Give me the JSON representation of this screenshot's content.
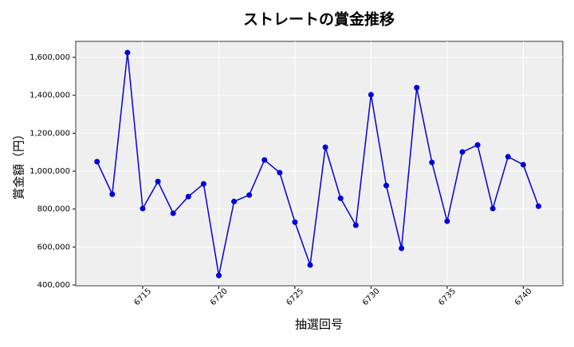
{
  "chart_data": {
    "type": "line",
    "title": "ストレートの賞金推移",
    "x_label": "抽選回号",
    "y_label": "賞金額（円）",
    "x": [
      6712,
      6713,
      6714,
      6715,
      6716,
      6717,
      6718,
      6719,
      6720,
      6721,
      6722,
      6723,
      6724,
      6725,
      6726,
      6727,
      6728,
      6729,
      6730,
      6731,
      6732,
      6733,
      6734,
      6735,
      6736,
      6737,
      6738,
      6739,
      6740,
      6741
    ],
    "series": [
      {
        "name": "賞金",
        "color": "#0000dd",
        "values": [
          1050000,
          878000,
          1625000,
          803000,
          945000,
          778000,
          866000,
          933000,
          450000,
          840000,
          874000,
          1059000,
          992000,
          731000,
          505000,
          1126000,
          857000,
          715000,
          1403000,
          924000,
          593000,
          1440000,
          1046000,
          736000,
          1101000,
          1138000,
          803000,
          1076000,
          1034000,
          815000
        ]
      }
    ],
    "xlim": [
      6710.6,
      6742.6
    ],
    "xticks": [
      6715,
      6720,
      6725,
      6730,
      6735,
      6740
    ],
    "ylim": [
      396000,
      1684000
    ],
    "yticks": [
      {
        "value": 400000,
        "label": "400,000"
      },
      {
        "value": 600000,
        "label": "600,000"
      },
      {
        "value": 800000,
        "label": "800,000"
      },
      {
        "value": 1000000,
        "label": "1,000,000"
      },
      {
        "value": 1200000,
        "label": "1,200,000"
      },
      {
        "value": 1400000,
        "label": "1,400,000"
      },
      {
        "value": 1600000,
        "label": "1,600,000"
      }
    ],
    "grid": true
  }
}
